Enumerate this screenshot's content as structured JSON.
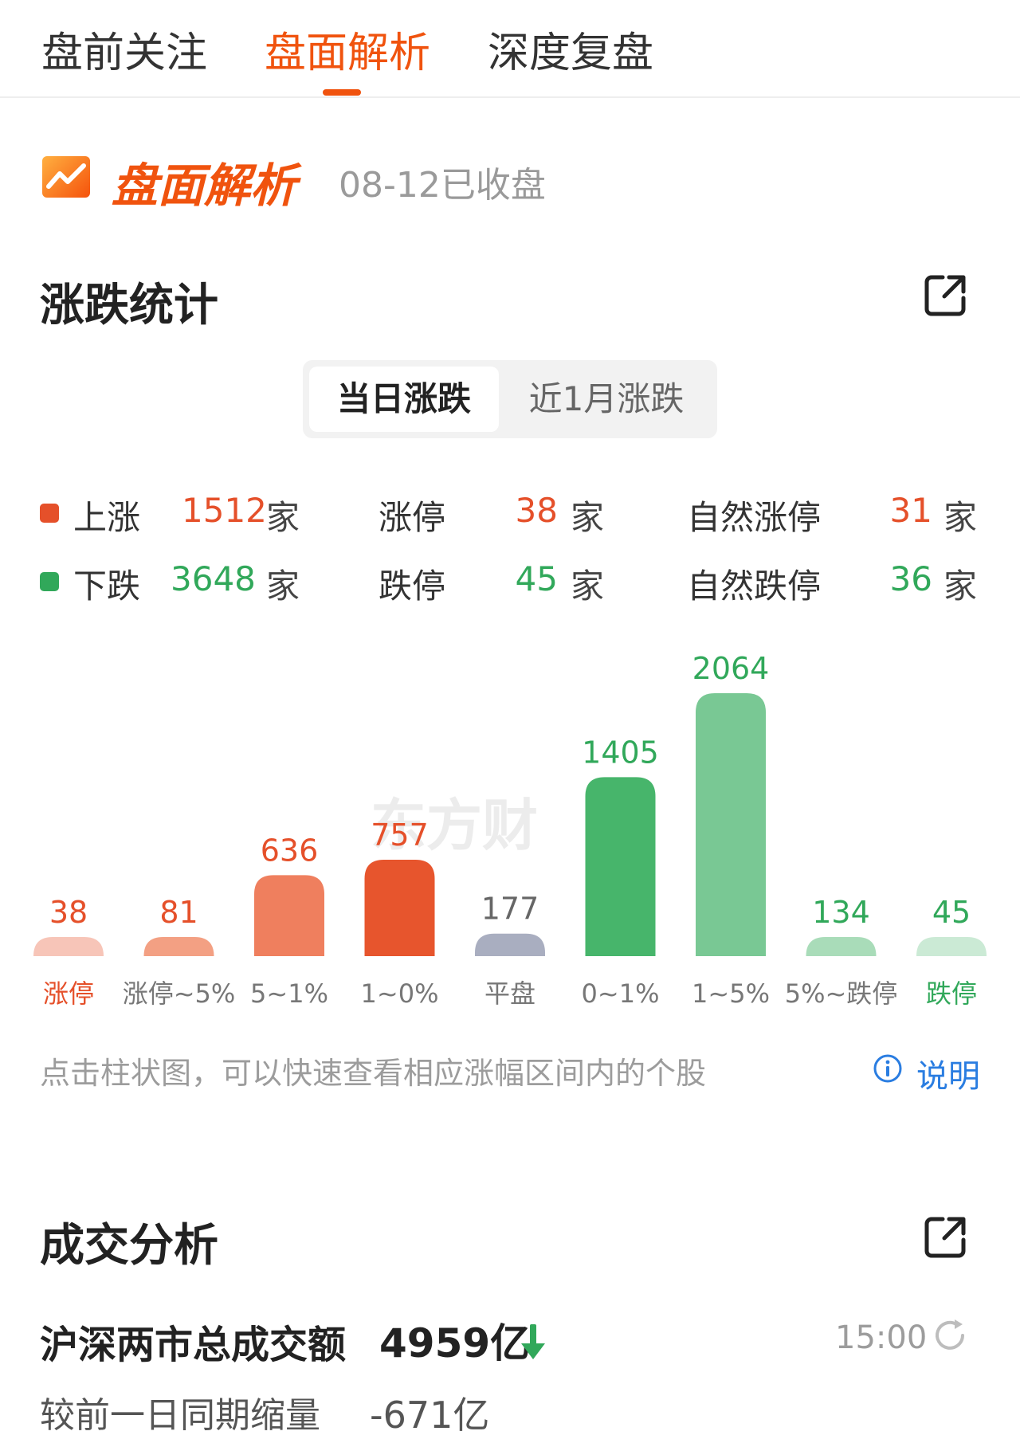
{
  "tabs": [
    {
      "label": "盘前关注",
      "active": false
    },
    {
      "label": "盘面解析",
      "active": true
    },
    {
      "label": "深度复盘",
      "active": false
    }
  ],
  "header": {
    "brand": "盘面解析",
    "date": "08-12已收盘",
    "icon": "trend-chart-icon"
  },
  "rise_fall": {
    "title": "涨跌统计",
    "segments": {
      "today": "当日涨跌",
      "month": "近1月涨跌"
    },
    "rows": [
      {
        "label": "上涨",
        "count": "1512",
        "unit": "家",
        "limit_label": "涨停",
        "limit_count": "38",
        "natural_label": "自然涨停",
        "natural_count": "31"
      },
      {
        "label": "下跌",
        "count": "3648",
        "unit": "家",
        "limit_label": "跌停",
        "limit_count": "45",
        "natural_label": "自然跌停",
        "natural_count": "36"
      }
    ],
    "colors": {
      "up": "#e5502a",
      "down": "#31a85a"
    },
    "hint": "点击柱状图，可以快速查看相应涨幅区间内的个股",
    "info_label": "说明",
    "watermark": "东方财"
  },
  "chart_data": {
    "type": "bar",
    "categories": [
      "涨停",
      "涨停~5%",
      "5~1%",
      "1~0%",
      "平盘",
      "0~1%",
      "1~5%",
      "5%~跌停",
      "跌停"
    ],
    "values": [
      38,
      81,
      636,
      757,
      177,
      1405,
      2064,
      134,
      45
    ],
    "colors": [
      "#f7c5b8",
      "#f3a083",
      "#ef7f5e",
      "#e7552d",
      "#a9aec0",
      "#47b56b",
      "#79c894",
      "#a9dcb9",
      "#cbead5"
    ],
    "label_colors": [
      "#e5502a",
      "#e5502a",
      "#e5502a",
      "#e5502a",
      "#666666",
      "#31a85a",
      "#31a85a",
      "#31a85a",
      "#31a85a"
    ],
    "category_label_colors": [
      "#e5502a",
      "#777777",
      "#777777",
      "#777777",
      "#777777",
      "#777777",
      "#777777",
      "#777777",
      "#31a85a"
    ],
    "title": "",
    "xlabel": "",
    "ylabel": "",
    "ylim": [
      0,
      2064
    ],
    "grid": false
  },
  "volume": {
    "title": "成交分析",
    "total_label": "沪深两市总成交额",
    "total_value": "4959亿",
    "trend": "down",
    "time": "15:00",
    "compare_label": "较前一日同期缩量",
    "compare_value": "-671亿"
  }
}
